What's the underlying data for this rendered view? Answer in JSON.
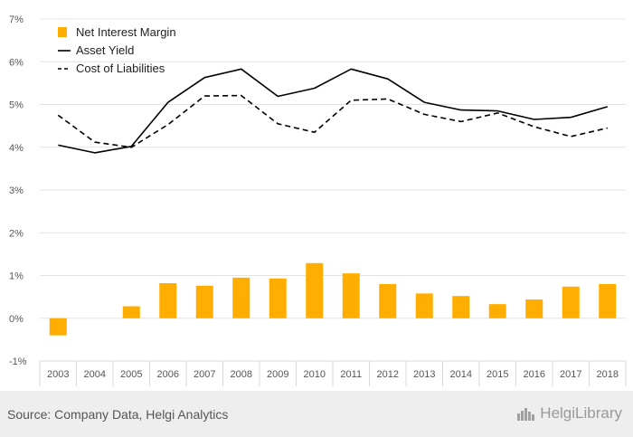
{
  "chart_data": {
    "type": "bar+line",
    "categories": [
      "2003",
      "2004",
      "2005",
      "2006",
      "2007",
      "2008",
      "2009",
      "2010",
      "2011",
      "2012",
      "2013",
      "2014",
      "2015",
      "2016",
      "2017",
      "2018"
    ],
    "series": [
      {
        "name": "Net Interest Margin",
        "kind": "bar",
        "color": "#ffae00",
        "values": [
          -0.4,
          null,
          0.28,
          0.82,
          0.76,
          0.95,
          0.93,
          1.29,
          1.05,
          0.8,
          0.58,
          0.52,
          0.33,
          0.44,
          0.74,
          0.8
        ]
      },
      {
        "name": "Asset Yield",
        "kind": "line",
        "style": "solid",
        "color": "#000000",
        "values": [
          4.05,
          3.87,
          4.02,
          5.05,
          5.63,
          5.83,
          5.19,
          5.38,
          5.83,
          5.6,
          5.05,
          4.87,
          4.85,
          4.65,
          4.7,
          4.95
        ]
      },
      {
        "name": "Cost of Liabilities",
        "kind": "line",
        "style": "dashed",
        "color": "#000000",
        "values": [
          4.75,
          4.12,
          4.0,
          4.53,
          5.2,
          5.21,
          4.55,
          4.35,
          5.1,
          5.13,
          4.77,
          4.6,
          4.8,
          4.48,
          4.25,
          4.45
        ]
      }
    ],
    "y_ticks": [
      "7%",
      "6%",
      "5%",
      "4%",
      "3%",
      "2%",
      "1%",
      "0%",
      "-1%"
    ],
    "ylim": [
      -1,
      7
    ],
    "grid": true,
    "legend_position": "top-left"
  },
  "footer": {
    "source": "Source: Company Data, Helgi Analytics",
    "brand": "HelgiLibrary",
    "brand_icon": "city-skyline-icon"
  }
}
